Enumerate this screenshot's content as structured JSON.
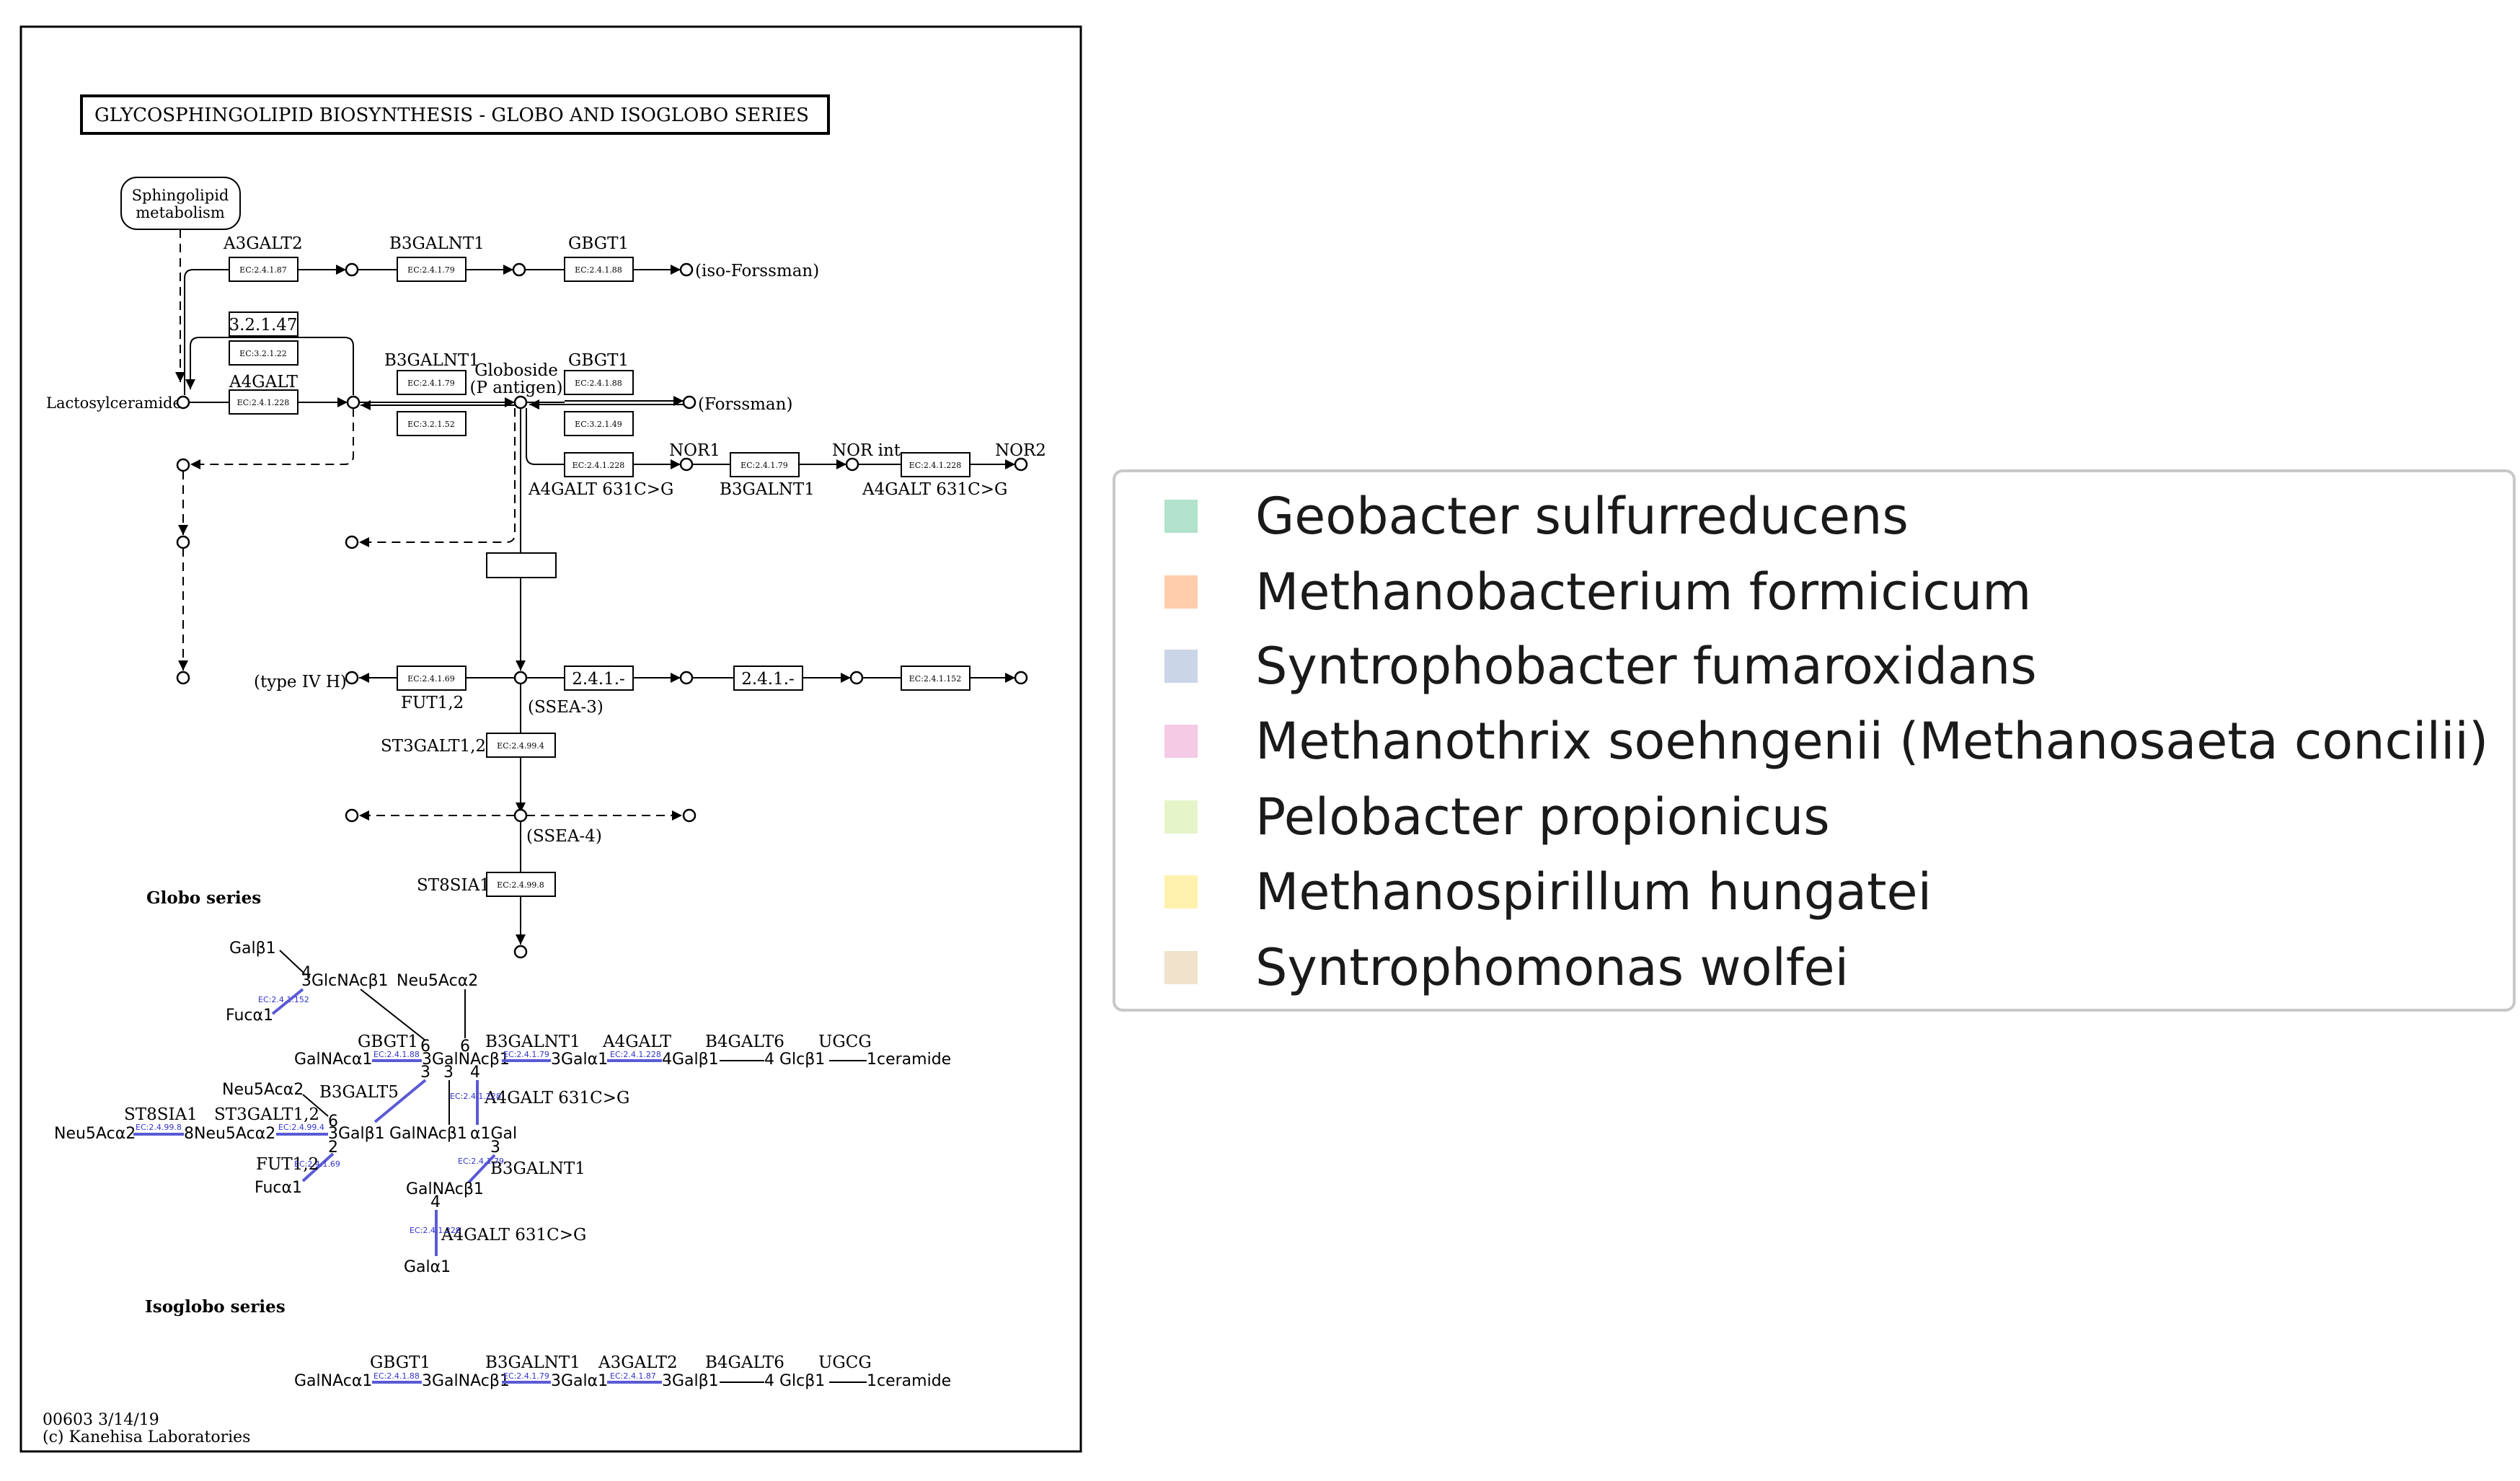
{
  "map": {
    "title": "GLYCOSPHINGOLIPID BIOSYNTHESIS - GLOBO AND ISOGLOBO SERIES",
    "sphingolipid_line1": "Sphingolipid",
    "sphingolipid_line2": "metabolism",
    "lactosylceramide": "Lactosylceramide",
    "globoside_line1": "Globoside",
    "globoside_line2": "(P antigen)",
    "iso_forssman": "(iso-Forssman)",
    "forssman": "(Forssman)",
    "nor1": "NOR1",
    "nor_int": "NOR int",
    "nor2": "NOR2",
    "type_iv_h": "(type IV H)",
    "ssea3": "(SSEA-3)",
    "ssea4": "(SSEA-4)",
    "globo_series": "Globo series",
    "isoglobo_series": "Isoglobo series",
    "footer_line1": "00603 3/14/19",
    "footer_line2": "(c) Kanehisa Laboratories",
    "genes": {
      "a3galt2": "A3GALT2",
      "b3galnt1": "B3GALNT1",
      "gbgt1": "GBGT1",
      "a4galt": "A4GALT",
      "a4galt_631": "A4GALT 631C>G",
      "fut12": "FUT1,2",
      "st3galt12": "ST3GALT1,2",
      "st8sia1": "ST8SIA1",
      "b3galt5": "B3GALT5",
      "b4galt6": "B4GALT6",
      "ugcg": "UGCG"
    },
    "ec": {
      "e241_87": "EC:2.4.1.87",
      "e241_79": "EC:2.4.1.79",
      "e241_88": "EC:2.4.1.88",
      "e3_2_1_47": "3.2.1.47",
      "e321_22": "EC:3.2.1.22",
      "e241_228": "EC:2.4.1.228",
      "e321_52": "EC:3.2.1.52",
      "e321_49": "EC:3.2.1.49",
      "e241_69": "EC:2.4.1.69",
      "e241_dash": "2.4.1.-",
      "e241_152": "EC:2.4.1.152",
      "e2_4_99_4": "EC:2.4.99.4",
      "e2_4_99_8": "EC:2.4.99.8"
    },
    "struct": {
      "galb1": "Galβ1",
      "glcnacb1": "3GlcNAcβ1",
      "fuca1": "Fucα1",
      "neu5aca2": "Neu5Acα2",
      "galnaca1": "GalNAcα1",
      "galnacb1": "3GalNAcβ1",
      "gala1": "3Galα1",
      "galb1_4": "4Galβ1",
      "glcb1": "4 Glcβ1",
      "ceramide": "1ceramide",
      "neu5ac_8": "8Neu5Acα2",
      "galb1_3": "3Galβ1",
      "galnacb1_plain": "GalNAcβ1",
      "a1gal": "α1Gal",
      "galnacb1_b": "GalNAcβ1",
      "gala1_b": "Galα1",
      "gala1_iso": "3Galβ1",
      "n3": "3",
      "n4": "4",
      "n6": "6",
      "n2": "2"
    }
  },
  "legend": {
    "items": [
      {
        "label": "Geobacter sulfurreducens",
        "color": "#b3e2cd"
      },
      {
        "label": "Methanobacterium formicicum",
        "color": "#fdcdac"
      },
      {
        "label": "Syntrophobacter fumaroxidans",
        "color": "#cbd5e8"
      },
      {
        "label": "Methanothrix soehngenii (Methanosaeta concilii)",
        "color": "#f4cae4"
      },
      {
        "label": "Pelobacter propionicus",
        "color": "#e6f5c9"
      },
      {
        "label": "Methanospirillum hungatei",
        "color": "#fff2ae"
      },
      {
        "label": "Syntrophomonas wolfei",
        "color": "#f1e2cc"
      }
    ]
  }
}
